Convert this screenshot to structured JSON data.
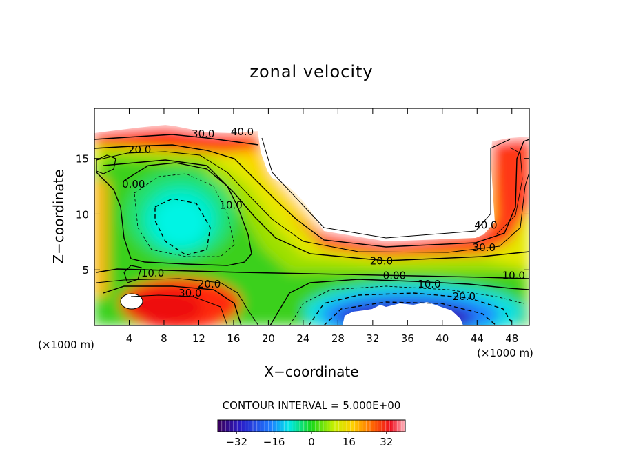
{
  "chart_data": {
    "type": "heatmap",
    "title": "zonal velocity",
    "xlabel": "X−coordinate",
    "ylabel": "Z−coordinate",
    "x_unit_label": "(×1000 m)",
    "xlim": [
      0,
      50
    ],
    "ylim": [
      0,
      19.5
    ],
    "x_ticks": [
      4,
      8,
      12,
      16,
      20,
      24,
      28,
      32,
      36,
      40,
      44,
      48
    ],
    "y_ticks": [
      5,
      10,
      15
    ],
    "contour_interval_text": "CONTOUR INTERVAL = 5.000E+00",
    "colorbar": {
      "range": [
        -40,
        40
      ],
      "ticks": [
        -32,
        -16,
        0,
        16,
        32
      ],
      "tick_labels": [
        "−32",
        "−16",
        "0",
        "16",
        "32"
      ],
      "colormap": "rainbow (purple → blue → cyan → green → yellow → orange → red → pink)"
    },
    "contour_labels": [
      {
        "text": "20.0",
        "x": 5.2,
        "z": 15.8
      },
      {
        "text": "30.0",
        "x": 12.5,
        "z": 17.2
      },
      {
        "text": "40.0",
        "x": 17.0,
        "z": 17.4
      },
      {
        "text": "0.00",
        "x": 4.5,
        "z": 12.7
      },
      {
        "text": "10.0",
        "x": 15.7,
        "z": 10.8
      },
      {
        "text": "10.0",
        "x": 6.7,
        "z": 4.7
      },
      {
        "text": "30.0",
        "x": 11.0,
        "z": 2.9
      },
      {
        "text": "20.0",
        "x": 13.2,
        "z": 3.7
      },
      {
        "text": "20.0",
        "x": 33.0,
        "z": 5.8
      },
      {
        "text": "0.00",
        "x": 34.5,
        "z": 4.5
      },
      {
        "text": "10.0",
        "x": 38.5,
        "z": 3.7
      },
      {
        "text": "20.0",
        "x": 42.5,
        "z": 2.6
      },
      {
        "text": "10.0",
        "x": 48.2,
        "z": 4.5
      },
      {
        "text": "30.0",
        "x": 44.8,
        "z": 7.0
      },
      {
        "text": "40.0",
        "x": 45.0,
        "z": 9.0
      }
    ],
    "grid": false
  }
}
